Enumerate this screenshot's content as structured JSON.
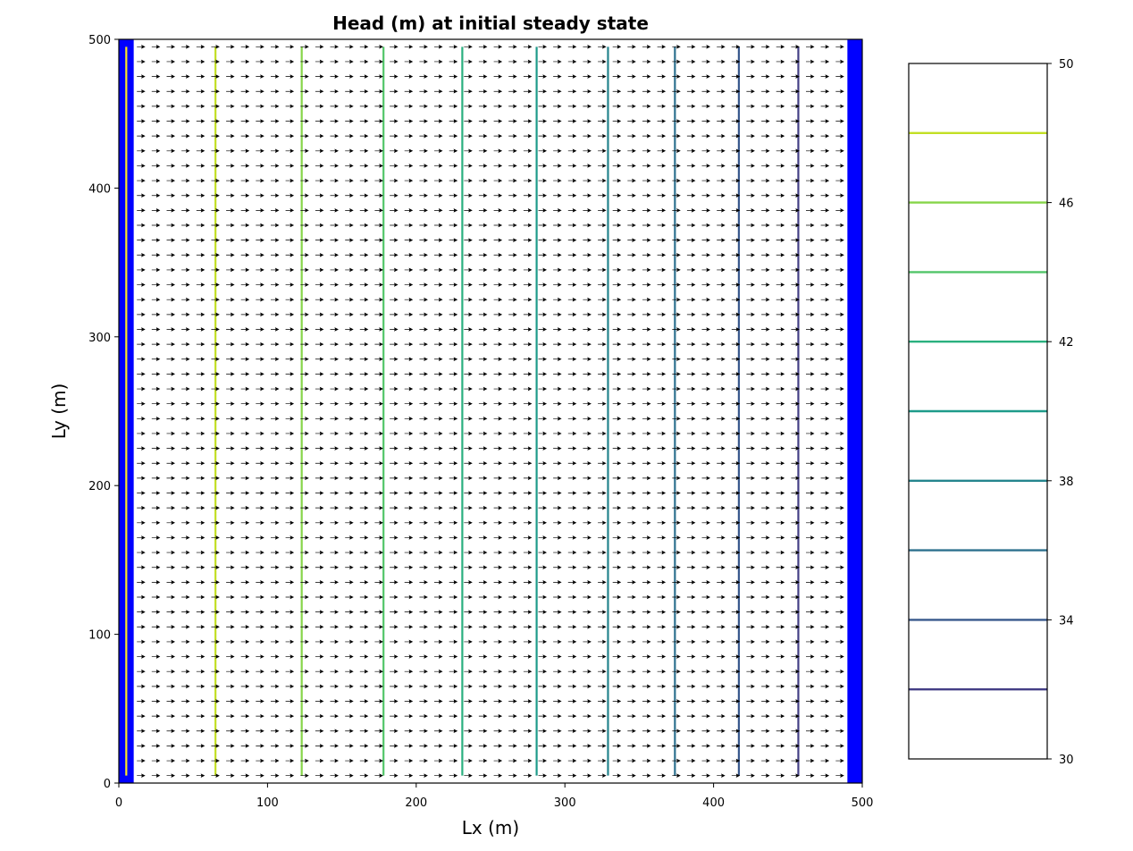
{
  "chart_data": [
    {
      "type": "contour",
      "title": "Head (m) at initial steady state",
      "xlabel": "Lx (m)",
      "ylabel": "Ly (m)",
      "xlim": [
        0,
        500
      ],
      "ylim": [
        0,
        500
      ],
      "xticks": [
        "0",
        "100",
        "200",
        "300",
        "400",
        "500"
      ],
      "yticks": [
        "0",
        "100",
        "200",
        "300",
        "400",
        "500"
      ],
      "grid": false,
      "boundary_bands": [
        {
          "x_from": 0,
          "x_to": 10,
          "color": "#0000ff"
        },
        {
          "x_from": 490,
          "x_to": 500,
          "color": "#0000ff"
        }
      ],
      "contours": [
        {
          "level": 50,
          "x": 5,
          "color": "#fde725"
        },
        {
          "level": 48,
          "x": 65,
          "color": "#c2df23"
        },
        {
          "level": 46,
          "x": 123,
          "color": "#86d549"
        },
        {
          "level": 44,
          "x": 178,
          "color": "#52c569"
        },
        {
          "level": 42,
          "x": 231,
          "color": "#2ab07f"
        },
        {
          "level": 40,
          "x": 281,
          "color": "#1e9b8a"
        },
        {
          "level": 38,
          "x": 329,
          "color": "#25858e"
        },
        {
          "level": 36,
          "x": 374,
          "color": "#2d708e"
        },
        {
          "level": 34,
          "x": 417,
          "color": "#38588c"
        },
        {
          "level": 32,
          "x": 457,
          "color": "#433e85"
        }
      ],
      "quiver": {
        "x_start": 15,
        "x_step": 10,
        "x_end": 485,
        "y_start": 5,
        "y_step": 10,
        "y_end": 495,
        "direction": "+x",
        "color": "#000000"
      }
    },
    {
      "type": "colorbar",
      "ticks": [
        "50",
        "46",
        "42",
        "38",
        "34",
        "30"
      ],
      "range": [
        30,
        50
      ],
      "levels": [
        {
          "value": 48,
          "color": "#c2df23"
        },
        {
          "value": 46,
          "color": "#86d549"
        },
        {
          "value": 44,
          "color": "#52c569"
        },
        {
          "value": 42,
          "color": "#2ab07f"
        },
        {
          "value": 40,
          "color": "#1e9b8a"
        },
        {
          "value": 38,
          "color": "#25858e"
        },
        {
          "value": 36,
          "color": "#2d708e"
        },
        {
          "value": 34,
          "color": "#38588c"
        },
        {
          "value": 32,
          "color": "#433e85"
        }
      ]
    }
  ]
}
